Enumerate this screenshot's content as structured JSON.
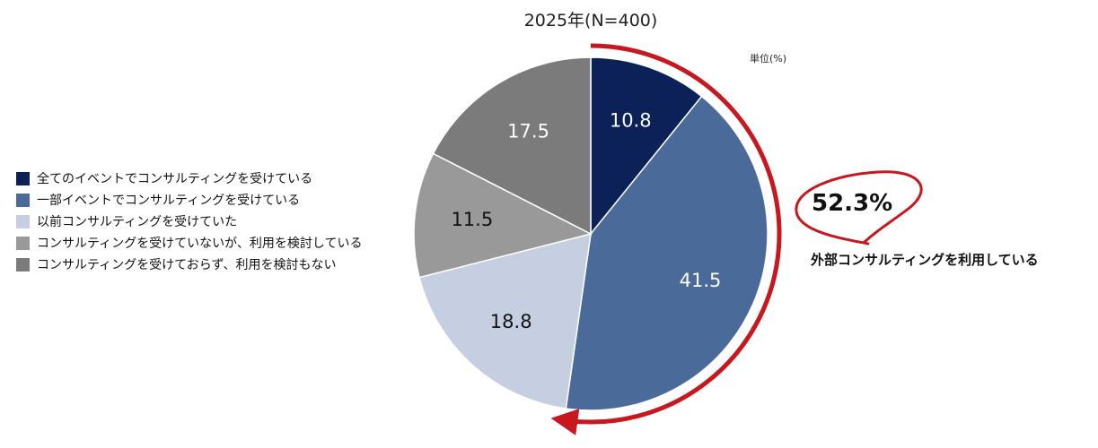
{
  "chart_data": {
    "type": "pie",
    "title": "2025年(N=400)",
    "unit_label": "単位(%)",
    "start_angle_deg": 0,
    "direction": "clockwise",
    "legend_position": "left",
    "slices": [
      {
        "label": "全てのイベントでコンサルティングを受けている",
        "value": 10.8,
        "display": "10.8",
        "color": "#0b2158",
        "label_color": "#ffffff"
      },
      {
        "label": "一部イベントでコンサルティングを受けている",
        "value": 41.5,
        "display": "41.5",
        "color": "#4a6a9a",
        "label_color": "#ffffff"
      },
      {
        "label": "以前コンサルティングを受けていた",
        "value": 18.8,
        "display": "18.8",
        "color": "#c5cfe1",
        "label_color": "#111111"
      },
      {
        "label": "コンサルティングを受けていないが、利用を検討している",
        "value": 11.5,
        "display": "11.5",
        "color": "#999999",
        "label_color": "#111111"
      },
      {
        "label": "コンサルティングを受けておらず、利用を検討もない",
        "value": 17.5,
        "display": "17.5",
        "color": "#7b7b7b",
        "label_color": "#ffffff"
      }
    ],
    "annotation": {
      "value": "52.3%",
      "text": "外部コンサルティングを利用している",
      "accent_color": "#c8181f"
    }
  }
}
